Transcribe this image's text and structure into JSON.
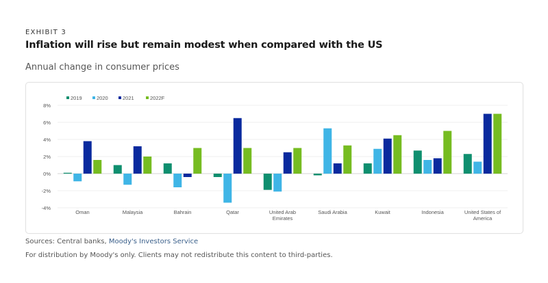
{
  "header": {
    "exhibit": "EXHIBIT 3",
    "title": "Inflation will rise but remain modest when compared with the US",
    "subtitle": "Annual change in consumer prices"
  },
  "footer": {
    "sources_prefix": "Sources: Central banks, ",
    "sources_link": "Moody's Investors Service",
    "disclaimer": "For distribution by Moody's only. Clients may not redistribute this content to third-parties."
  },
  "chart_data": {
    "type": "bar",
    "title": "",
    "xlabel": "",
    "ylabel": "",
    "ylim": [
      -4,
      8
    ],
    "yticks": [
      8,
      6,
      4,
      2,
      0,
      -2,
      -4
    ],
    "ytick_labels": [
      "8%",
      "6%",
      "4%",
      "2%",
      "0%",
      "-2%",
      "-4%"
    ],
    "grid": true,
    "legend_position": "top-left",
    "categories": [
      [
        "Oman"
      ],
      [
        "Malaysia"
      ],
      [
        "Bahrain"
      ],
      [
        "Qatar"
      ],
      [
        "United Arab",
        "Emirates"
      ],
      [
        "Saudi Arabia"
      ],
      [
        "Kuwait"
      ],
      [
        "Indonesia"
      ],
      [
        "United States of",
        "America"
      ]
    ],
    "series": [
      {
        "name": "2019",
        "color": "#0f8f6f",
        "values": [
          0.1,
          1.0,
          1.2,
          -0.4,
          -1.9,
          -0.2,
          1.2,
          2.7,
          2.3
        ]
      },
      {
        "name": "2020",
        "color": "#3fb5e6",
        "values": [
          -0.9,
          -1.3,
          -1.6,
          -3.4,
          -2.1,
          5.3,
          2.9,
          1.6,
          1.4
        ]
      },
      {
        "name": "2021",
        "color": "#0a2a9e",
        "values": [
          3.8,
          3.2,
          -0.4,
          6.5,
          2.5,
          1.2,
          4.1,
          1.8,
          7.0
        ]
      },
      {
        "name": "2022F",
        "color": "#76bc21",
        "values": [
          1.6,
          2.0,
          3.0,
          3.0,
          3.0,
          3.3,
          4.5,
          5.0,
          7.0
        ]
      }
    ]
  }
}
